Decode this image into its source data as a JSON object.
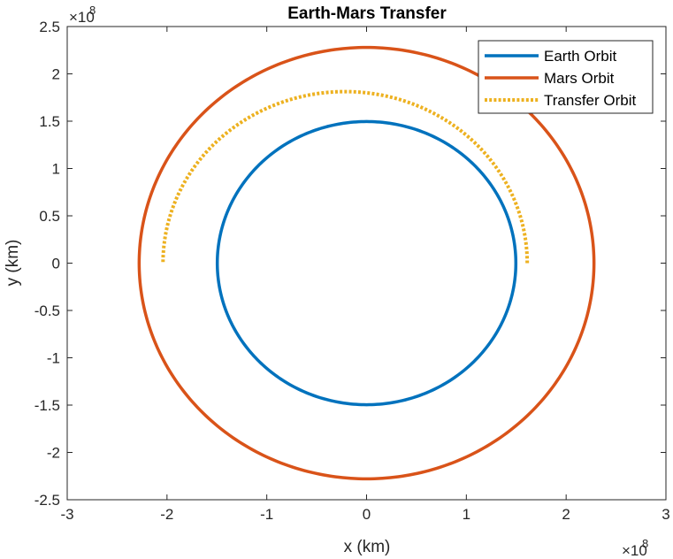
{
  "chart_data": {
    "type": "line",
    "title": "Earth-Mars Transfer",
    "xlabel": "x (km)",
    "ylabel": "y (km)",
    "xlim": [
      -3,
      3
    ],
    "ylim": [
      -2.5,
      2.5
    ],
    "axis_multiplier": "×10",
    "axis_exponent": "8",
    "x_ticks": [
      -3,
      -2,
      -1,
      0,
      1,
      2,
      3
    ],
    "x_tick_labels": [
      "-3",
      "-2",
      "-1",
      "0",
      "1",
      "2",
      "3"
    ],
    "y_ticks": [
      -2.5,
      -2,
      -1.5,
      -1,
      -0.5,
      0,
      0.5,
      1,
      1.5,
      2,
      2.5
    ],
    "y_tick_labels": [
      "-2.5",
      "-2",
      "-1.5",
      "-1",
      "-0.5",
      "0",
      "0.5",
      "1",
      "1.5",
      "2",
      "2.5"
    ],
    "grid": false,
    "legend_position": "top-right",
    "series": [
      {
        "name": "Earth Orbit",
        "color": "#0072BD",
        "style": "solid",
        "shape": "circle",
        "radius": 1.496,
        "theta_range_deg": [
          0,
          360
        ]
      },
      {
        "name": "Mars Orbit",
        "color": "#D95319",
        "style": "solid",
        "shape": "circle",
        "radius": 2.279,
        "theta_range_deg": [
          0,
          360
        ]
      },
      {
        "name": "Transfer Orbit",
        "color": "#EDB120",
        "style": "dotted",
        "shape": "ellipse",
        "perihelion": 1.61,
        "aphelion": 2.04,
        "theta_range_deg": [
          0,
          180
        ]
      }
    ]
  }
}
